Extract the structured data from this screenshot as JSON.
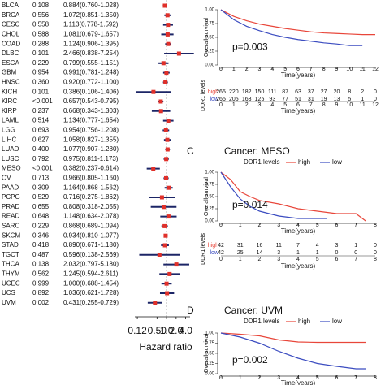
{
  "chart_data": [
    {
      "type": "forest",
      "categories": [
        "BLCA",
        "BRCA",
        "CESC",
        "CHOL",
        "COAD",
        "DLBC",
        "ESCA",
        "GBM",
        "HNSC",
        "KICH",
        "KIRC",
        "KIRP",
        "LAML",
        "LGG",
        "LIHC",
        "LUAD",
        "LUSC",
        "MESO",
        "OV",
        "PAAD",
        "PCPG",
        "PRAD",
        "READ",
        "SARC",
        "SKCM",
        "STAD",
        "TGCT",
        "THCA",
        "THYM",
        "UCEC",
        "UCS",
        "UVM"
      ],
      "pvalues": [
        "0.108",
        "0.556",
        "0.558",
        "0.588",
        "0.288",
        "0.101",
        "0.229",
        "0.954",
        "0.360",
        "0.101",
        "<0.001",
        "0.237",
        "0.514",
        "0.693",
        "0.627",
        "0.400",
        "0.792",
        "<0.001",
        "0.713",
        "0.309",
        "0.529",
        "0.655",
        "0.648",
        "0.229",
        "0.346",
        "0.418",
        "0.487",
        "0.138",
        "0.562",
        "0.999",
        "0.892",
        "0.002"
      ],
      "values": [
        0.884,
        1.072,
        1.113,
        1.081,
        1.124,
        2.466,
        0.799,
        0.991,
        0.92,
        0.386,
        0.657,
        0.668,
        1.134,
        0.954,
        1.058,
        1.077,
        0.975,
        0.382,
        0.966,
        1.164,
        0.716,
        0.808,
        1.148,
        0.868,
        0.934,
        0.89,
        0.596,
        2.032,
        1.245,
        1.0,
        1.036,
        0.431
      ],
      "ci_low": [
        0.76,
        0.851,
        0.778,
        0.679,
        0.906,
        0.838,
        0.555,
        0.781,
        0.772,
        0.106,
        0.543,
        0.343,
        0.777,
        0.756,
        0.827,
        0.907,
        0.811,
        0.237,
        0.805,
        0.868,
        0.275,
        0.318,
        0.634,
        0.689,
        0.81,
        0.671,
        0.138,
        0.797,
        0.594,
        0.688,
        0.621,
        0.255
      ],
      "ci_high": [
        1.028,
        1.35,
        1.592,
        1.657,
        1.395,
        7.254,
        1.151,
        1.248,
        1.1,
        1.406,
        0.795,
        1.303,
        1.654,
        1.208,
        1.355,
        1.28,
        1.173,
        0.614,
        1.16,
        1.562,
        1.862,
        2.055,
        2.078,
        1.094,
        1.077,
        1.18,
        2.569,
        5.18,
        2.611,
        1.454,
        1.728,
        0.729
      ],
      "value_labels": [
        "0.884(0.760-1.028)",
        "1.072(0.851-1.350)",
        "1.113(0.778-1.592)",
        "1.081(0.679-1.657)",
        "1.124(0.906-1.395)",
        "2.466(0.838-7.254)",
        "0.799(0.555-1.151)",
        "0.991(0.781-1.248)",
        "0.920(0.772-1.100)",
        "0.386(0.106-1.406)",
        "0.657(0.543-0.795)",
        "0.668(0.343-1.303)",
        "1.134(0.777-1.654)",
        "0.954(0.756-1.208)",
        "1.058(0.827-1.355)",
        "1.077(0.907-1.280)",
        "0.975(0.811-1.173)",
        "0.382(0.237-0.614)",
        "0.966(0.805-1.160)",
        "1.164(0.868-1.562)",
        "0.716(0.275-1.862)",
        "0.808(0.318-2.055)",
        "1.148(0.634-2.078)",
        "0.868(0.689-1.094)",
        "0.934(0.810-1.077)",
        "0.890(0.671-1.180)",
        "0.596(0.138-2.569)",
        "2.032(0.797-5.180)",
        "1.245(0.594-2.611)",
        "1.000(0.688-1.454)",
        "1.036(0.621-1.728)",
        "0.431(0.255-0.729)"
      ],
      "xscale": "log",
      "xlim": [
        0.1,
        5.5
      ],
      "xticks": [
        0.12,
        {
          "value": 0.5,
          "label": "0.50"
        },
        {
          "value": 1,
          "label": "1.0"
        },
        {
          "value": 2,
          "label": "2.0"
        },
        {
          "value": 4,
          "label": "4.0"
        }
      ],
      "xlabel": "Hazard ratio",
      "marker_color": "#e0302a",
      "line_color": "#1c2566"
    },
    {
      "type": "km",
      "ylabel": "Overall survival",
      "xlabel": "Time(years)",
      "annotation": "p=0.003",
      "xlim": [
        0,
        12
      ],
      "xticks": [
        0,
        1,
        2,
        3,
        4,
        5,
        6,
        7,
        8,
        9,
        10,
        11,
        12
      ],
      "ylim": [
        0,
        1
      ],
      "yticks": [
        {
          "value": 0,
          "label": "0.00"
        },
        {
          "value": 0.25,
          "label": "0.25"
        },
        {
          "value": 0.5,
          "label": "0.50"
        },
        {
          "value": 0.75,
          "label": "0.75"
        },
        {
          "value": 1,
          "label": "1.00"
        }
      ],
      "series": [
        {
          "name": "high",
          "color": "#e8463a",
          "x": [
            0,
            1,
            2,
            3,
            4,
            5,
            6,
            7,
            8,
            9,
            10,
            11,
            12
          ],
          "values": [
            1,
            0.88,
            0.8,
            0.74,
            0.7,
            0.66,
            0.63,
            0.6,
            0.58,
            0.57,
            0.56,
            0.55,
            0.55
          ]
        },
        {
          "name": "low",
          "color": "#3b4cc0",
          "x": [
            0,
            1,
            2,
            3,
            4,
            5,
            6,
            7,
            8,
            9,
            10,
            11
          ],
          "values": [
            1,
            0.82,
            0.7,
            0.62,
            0.55,
            0.5,
            0.46,
            0.43,
            0.4,
            0.38,
            0.35,
            0.35
          ]
        }
      ],
      "risk_title": "DDR1 levels",
      "risk_table": [
        [
          "265",
          "220",
          "182",
          "150",
          "111",
          "87",
          "63",
          "37",
          "27",
          "20",
          "8",
          "2",
          "0"
        ],
        [
          "265",
          "205",
          "163",
          "125",
          "93",
          "77",
          "51",
          "31",
          "19",
          "13",
          "5",
          "1",
          "0"
        ]
      ]
    },
    {
      "type": "km",
      "panel": "C",
      "title": "Cancer: MESO",
      "legend_title": "DDR1 levels",
      "ylabel": "Overall survival",
      "xlabel": "Time(years)",
      "annotation": "p=0.014",
      "xlim": [
        0,
        8
      ],
      "xticks": [
        0,
        1,
        2,
        3,
        4,
        5,
        6,
        7,
        8
      ],
      "ylim": [
        0,
        1
      ],
      "yticks": [
        {
          "value": 0,
          "label": "0.00"
        },
        {
          "value": 0.25,
          "label": "0.25"
        },
        {
          "value": 0.5,
          "label": "0.50"
        },
        {
          "value": 0.75,
          "label": "0.75"
        },
        {
          "value": 1,
          "label": "1.00"
        }
      ],
      "series": [
        {
          "name": "high",
          "color": "#e8463a",
          "x": [
            0,
            0.5,
            1,
            1.5,
            2,
            3,
            4,
            5,
            6,
            7,
            7.5
          ],
          "values": [
            1,
            0.85,
            0.6,
            0.5,
            0.42,
            0.35,
            0.25,
            0.2,
            0.15,
            0.15,
            0
          ]
        },
        {
          "name": "low",
          "color": "#3b4cc0",
          "x": [
            0,
            0.5,
            1,
            1.5,
            2,
            3,
            4,
            5.5
          ],
          "values": [
            1,
            0.7,
            0.45,
            0.3,
            0.2,
            0.1,
            0.05,
            0.05
          ]
        }
      ],
      "risk_title": "DDR1 levels",
      "risk_table": [
        [
          "42",
          "31",
          "16",
          "11",
          "7",
          "4",
          "3",
          "1",
          "0"
        ],
        [
          "42",
          "25",
          "14",
          "3",
          "1",
          "1",
          "0",
          "0",
          "0"
        ]
      ]
    },
    {
      "type": "km",
      "panel": "D",
      "title": "Cancer: UVM",
      "legend_title": "DDR1 levels",
      "ylabel": "Overall survival",
      "xlabel": "Time(years)",
      "annotation": "p=0.002",
      "xlim": [
        0,
        8
      ],
      "xticks": [
        0,
        1,
        2,
        3,
        4,
        5,
        6,
        7,
        8
      ],
      "ylim": [
        0,
        1
      ],
      "yticks": [
        {
          "value": 0,
          "label": "0.00"
        },
        {
          "value": 0.25,
          "label": "0.25"
        },
        {
          "value": 0.5,
          "label": "0.50"
        },
        {
          "value": 0.75,
          "label": "0.75"
        },
        {
          "value": 1,
          "label": "1.00"
        }
      ],
      "series": [
        {
          "name": "high",
          "color": "#e8463a",
          "x": [
            0,
            1,
            2,
            3,
            4,
            5,
            6,
            7,
            7.5
          ],
          "values": [
            1,
            0.97,
            0.93,
            0.83,
            0.78,
            0.77,
            0.77,
            0.77,
            0.77
          ]
        },
        {
          "name": "low",
          "color": "#3b4cc0",
          "x": [
            0,
            1,
            2,
            3,
            4,
            5,
            6,
            7,
            7.5
          ],
          "values": [
            1,
            0.9,
            0.75,
            0.55,
            0.38,
            0.25,
            0.18,
            0.12,
            0.12
          ]
        }
      ]
    }
  ]
}
